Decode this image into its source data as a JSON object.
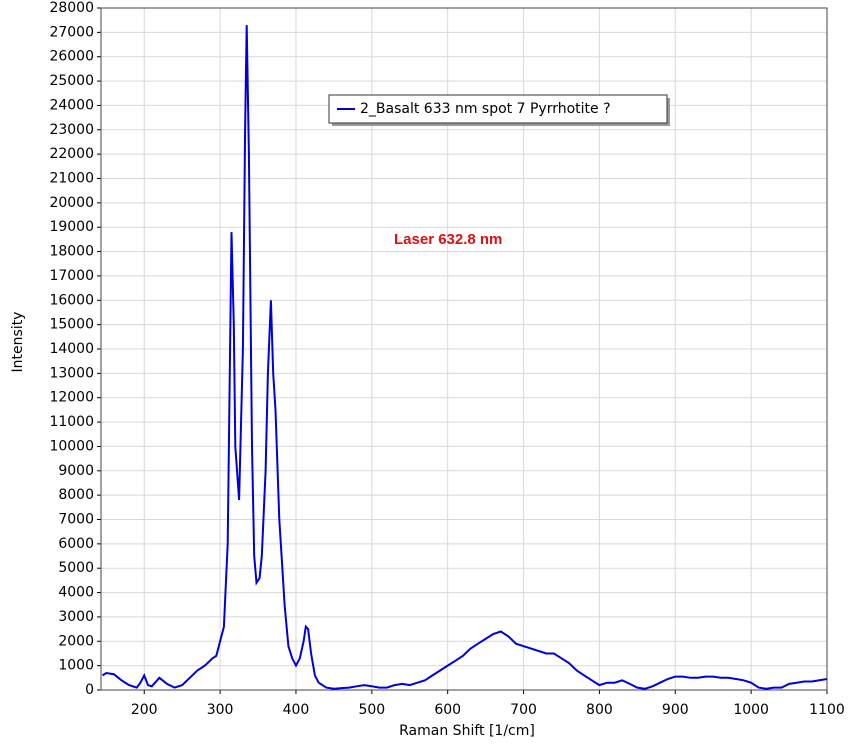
{
  "chart_data": {
    "type": "line",
    "x_label": "Raman Shift [1/cm]",
    "y_label": "Intensity",
    "annotation": "Laser 632.8 nm",
    "annotation_color": "#e01010",
    "grid": true,
    "xlim": [
      143,
      1100
    ],
    "ylim": [
      0,
      28000
    ],
    "xticks": [
      200,
      300,
      400,
      500,
      600,
      700,
      800,
      900,
      1000,
      1100
    ],
    "yticks": [
      0,
      1000,
      2000,
      3000,
      4000,
      5000,
      6000,
      7000,
      8000,
      9000,
      10000,
      11000,
      12000,
      13000,
      14000,
      15000,
      16000,
      17000,
      18000,
      19000,
      20000,
      21000,
      22000,
      23000,
      24000,
      25000,
      26000,
      27000,
      28000
    ],
    "x": [
      145,
      150,
      160,
      170,
      180,
      190,
      195,
      200,
      205,
      210,
      220,
      230,
      240,
      250,
      260,
      270,
      280,
      290,
      295,
      300,
      305,
      310,
      315,
      318,
      320,
      325,
      330,
      333,
      335,
      338,
      342,
      345,
      348,
      352,
      355,
      360,
      363,
      367,
      370,
      373,
      378,
      381,
      385,
      390,
      395,
      400,
      405,
      410,
      413,
      416,
      420,
      425,
      430,
      440,
      450,
      460,
      470,
      480,
      490,
      500,
      510,
      520,
      530,
      540,
      550,
      560,
      570,
      580,
      590,
      600,
      610,
      620,
      630,
      640,
      650,
      660,
      670,
      680,
      690,
      700,
      710,
      720,
      730,
      740,
      750,
      760,
      770,
      780,
      790,
      800,
      810,
      820,
      830,
      840,
      850,
      860,
      870,
      880,
      890,
      900,
      910,
      920,
      930,
      940,
      950,
      960,
      970,
      980,
      990,
      1000,
      1010,
      1020,
      1030,
      1040,
      1050,
      1060,
      1070,
      1080,
      1090,
      1100
    ],
    "series": [
      {
        "name": "2_Basalt 633 nm spot 7 Pyrrhotite ?",
        "color": "#0000dd",
        "values": [
          600,
          700,
          650,
          400,
          200,
          100,
          300,
          600,
          200,
          150,
          500,
          250,
          100,
          200,
          500,
          800,
          1000,
          1300,
          1400,
          2000,
          2600,
          6000,
          18800,
          15000,
          10000,
          7800,
          14000,
          23000,
          27300,
          22000,
          10000,
          5500,
          4400,
          4600,
          5500,
          9000,
          13000,
          16000,
          13000,
          11500,
          7000,
          5500,
          3500,
          1800,
          1300,
          1000,
          1300,
          2000,
          2600,
          2500,
          1500,
          600,
          300,
          100,
          50,
          80,
          100,
          150,
          200,
          150,
          100,
          100,
          200,
          250,
          200,
          300,
          400,
          600,
          800,
          1000,
          1200,
          1400,
          1700,
          1900,
          2100,
          2300,
          2400,
          2200,
          1900,
          1800,
          1700,
          1600,
          1500,
          1500,
          1300,
          1100,
          800,
          600,
          400,
          200,
          300,
          300,
          400,
          250,
          100,
          50,
          150,
          300,
          450,
          550,
          550,
          500,
          500,
          550,
          550,
          500,
          500,
          450,
          400,
          300,
          100,
          50,
          100,
          100,
          250,
          300,
          350,
          350,
          400,
          450
        ]
      }
    ]
  }
}
